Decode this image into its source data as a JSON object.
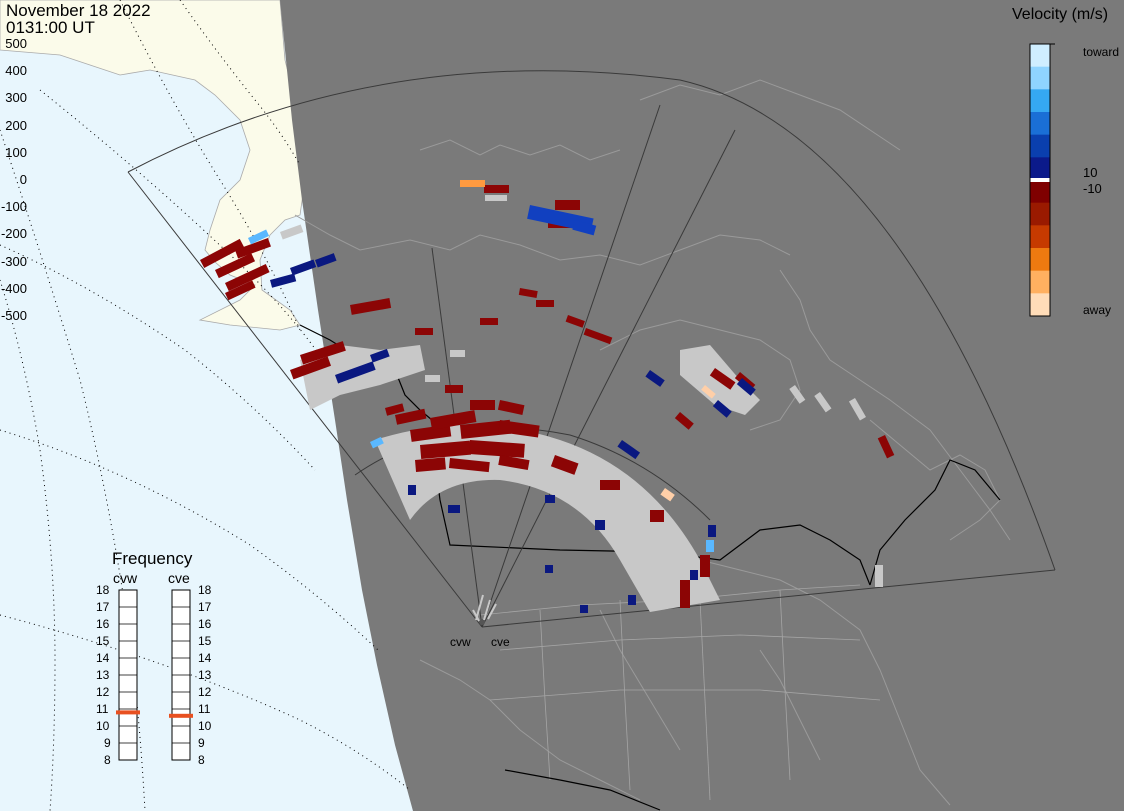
{
  "header": {
    "date": "November 18 2022",
    "time": "0131:00 UT"
  },
  "colorbar": {
    "title": "Velocity (m/s)",
    "ticks": [
      "500",
      "400",
      "300",
      "200",
      "100",
      "0",
      "-100",
      "-200",
      "-300",
      "-400",
      "-500"
    ],
    "inner_pos_label": "10",
    "inner_neg_label": "-10",
    "toward_label": "toward",
    "away_label": "away",
    "colors": [
      "#cfeeff",
      "#8fd4ff",
      "#35a8f2",
      "#1a6fd6",
      "#0a3fae",
      "#0b1a8a",
      "#7f0000",
      "#9a1a00",
      "#c63a00",
      "#ee7a10",
      "#ffb060",
      "#ffdcb8"
    ]
  },
  "frequency": {
    "title": "Frequency",
    "radars": [
      {
        "name": "cvw",
        "value_mhz": 10.8,
        "indicator_color": "#e85020"
      },
      {
        "name": "cve",
        "value_mhz": 10.6,
        "indicator_color": "#e85020"
      }
    ],
    "ticks": [
      "18",
      "17",
      "16",
      "15",
      "14",
      "13",
      "12",
      "11",
      "10",
      "9",
      "8"
    ]
  },
  "map": {
    "ocean_color": "#e8f6fd",
    "land_color": "#fbfbea",
    "night_color": "#7a7a7a",
    "radar_labels": [
      "cvw",
      "cve"
    ],
    "velocity_colors": {
      "strong_toward": "#1140c0",
      "light_toward": "#5ab8ff",
      "toward": "#0a1880",
      "away": "#8c0505",
      "light_away": "#ffcfa8",
      "orange_away": "#ff9a40",
      "ground_scatter": "#c8c8c8"
    }
  }
}
